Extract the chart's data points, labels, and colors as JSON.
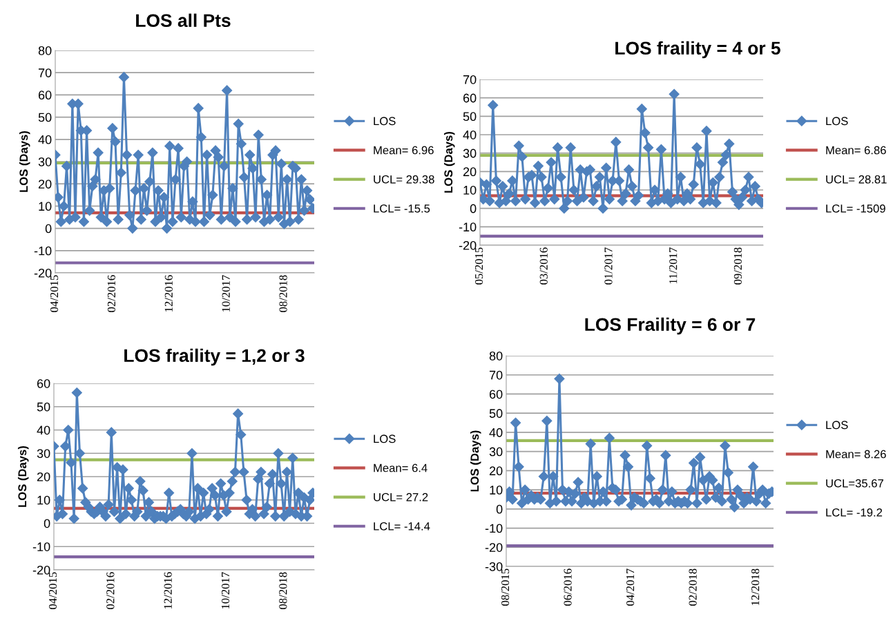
{
  "chart_data": [
    {
      "type": "line",
      "title": "LOS all Pts",
      "ylabel": "LOS (Days)",
      "marker": "diamond",
      "grid": "y",
      "legend": "right",
      "categories": [
        "04/2015",
        null,
        null,
        null,
        null,
        null,
        null,
        null,
        null,
        null,
        null,
        null,
        null,
        null,
        null,
        null,
        null,
        null,
        null,
        null,
        "02/2016",
        null,
        null,
        null,
        null,
        null,
        null,
        null,
        null,
        null,
        null,
        null,
        null,
        null,
        null,
        null,
        null,
        null,
        null,
        null,
        "12/2016",
        null,
        null,
        null,
        null,
        null,
        null,
        null,
        null,
        null,
        null,
        null,
        null,
        null,
        null,
        null,
        null,
        null,
        null,
        null,
        "10/2017",
        null,
        null,
        null,
        null,
        null,
        null,
        null,
        null,
        null,
        null,
        null,
        null,
        null,
        null,
        null,
        null,
        null,
        null,
        null,
        "08/2018",
        null,
        null,
        null,
        null,
        null,
        null,
        null,
        null,
        null,
        null
      ],
      "series": [
        {
          "name": "LOS",
          "color": "#4f81bd",
          "values": [
            33,
            14,
            3,
            10,
            28,
            4,
            56,
            5,
            56,
            44,
            3,
            44,
            8,
            19,
            22,
            34,
            5,
            17,
            3,
            18,
            45,
            39,
            4,
            25,
            68,
            33,
            6,
            0,
            17,
            33,
            4,
            18,
            8,
            21,
            34,
            3,
            17,
            5,
            14,
            0,
            37,
            3,
            22,
            36,
            5,
            28,
            30,
            4,
            12,
            3,
            54,
            41,
            3,
            33,
            6,
            15,
            35,
            32,
            4,
            28,
            62,
            5,
            18,
            3,
            47,
            38,
            23,
            4,
            33,
            27,
            5,
            42,
            22,
            3,
            15,
            4,
            33,
            35,
            5,
            29,
            2,
            22,
            3,
            28,
            27,
            4,
            22,
            8,
            17,
            13,
            9
          ]
        }
      ],
      "ref_lines": [
        {
          "axis": "y",
          "value": 6.96,
          "label": "Mean= 6.96",
          "color": "#c0504d"
        },
        {
          "axis": "y",
          "value": 29.38,
          "label": "UCL= 29.38",
          "color": "#9bbb59"
        },
        {
          "axis": "y",
          "value": -15.5,
          "label": "LCL= -15.5",
          "color": "#8064a2"
        }
      ],
      "ylim": [
        -20,
        80
      ],
      "yticks": [
        -20,
        -10,
        0,
        10,
        20,
        30,
        40,
        50,
        60,
        70,
        80
      ]
    },
    {
      "type": "line",
      "title": "LOS fraility = 4 or 5",
      "ylabel": "LOS (Days)",
      "marker": "diamond",
      "grid": "y",
      "legend": "right",
      "categories": [
        "05/2015",
        null,
        null,
        null,
        null,
        null,
        null,
        null,
        null,
        null,
        null,
        null,
        null,
        null,
        null,
        null,
        null,
        null,
        null,
        null,
        "03/2016",
        null,
        null,
        null,
        null,
        null,
        null,
        null,
        null,
        null,
        null,
        null,
        null,
        null,
        null,
        null,
        null,
        null,
        null,
        null,
        "01/2017",
        null,
        null,
        null,
        null,
        null,
        null,
        null,
        null,
        null,
        null,
        null,
        null,
        null,
        null,
        null,
        null,
        null,
        null,
        null,
        "11/2017",
        null,
        null,
        null,
        null,
        null,
        null,
        null,
        null,
        null,
        null,
        null,
        null,
        null,
        null,
        null,
        null,
        null,
        null,
        null,
        "09/2018",
        null,
        null,
        null,
        null,
        null,
        null,
        null
      ],
      "series": [
        {
          "name": "LOS",
          "color": "#4f81bd",
          "values": [
            14,
            5,
            13,
            4,
            56,
            15,
            3,
            12,
            4,
            8,
            15,
            4,
            34,
            28,
            5,
            17,
            18,
            3,
            23,
            17,
            4,
            11,
            25,
            5,
            33,
            17,
            0,
            4,
            33,
            10,
            4,
            21,
            6,
            20,
            21,
            4,
            12,
            17,
            0,
            22,
            5,
            15,
            36,
            15,
            4,
            8,
            21,
            12,
            4,
            7,
            54,
            41,
            33,
            3,
            10,
            4,
            32,
            5,
            8,
            3,
            62,
            5,
            17,
            4,
            8,
            5,
            13,
            33,
            24,
            3,
            42,
            4,
            14,
            3,
            17,
            25,
            29,
            35,
            9,
            5,
            2,
            6,
            10,
            17,
            4,
            12,
            5,
            3
          ]
        }
      ],
      "ref_lines": [
        {
          "axis": "y",
          "value": 6.86,
          "label": "Mean= 6.86",
          "color": "#c0504d"
        },
        {
          "axis": "y",
          "value": 28.81,
          "label": "UCL= 28.81",
          "color": "#9bbb59"
        },
        {
          "axis": "y",
          "value": -15.09,
          "label": "LCL= -1509",
          "color": "#8064a2"
        }
      ],
      "ylim": [
        -20,
        70
      ],
      "yticks": [
        -20,
        -10,
        0,
        10,
        20,
        30,
        40,
        50,
        60,
        70
      ]
    },
    {
      "type": "line",
      "title": "LOS fraility = 1,2 or 3",
      "ylabel": "LOS (Days)",
      "marker": "diamond",
      "grid": "y",
      "legend": "right",
      "categories": [
        "04/2015",
        null,
        null,
        null,
        null,
        null,
        null,
        null,
        null,
        null,
        null,
        null,
        null,
        null,
        null,
        null,
        null,
        null,
        null,
        null,
        "02/2016",
        null,
        null,
        null,
        null,
        null,
        null,
        null,
        null,
        null,
        null,
        null,
        null,
        null,
        null,
        null,
        null,
        null,
        null,
        null,
        "12/2016",
        null,
        null,
        null,
        null,
        null,
        null,
        null,
        null,
        null,
        null,
        null,
        null,
        null,
        null,
        null,
        null,
        null,
        null,
        null,
        "10/2017",
        null,
        null,
        null,
        null,
        null,
        null,
        null,
        null,
        null,
        null,
        null,
        null,
        null,
        null,
        null,
        null,
        null,
        null,
        null,
        "08/2018",
        null,
        null,
        null,
        null,
        null,
        null,
        null,
        null,
        null,
        null
      ],
      "series": [
        {
          "name": "LOS",
          "color": "#4f81bd",
          "values": [
            33,
            3,
            10,
            4,
            33,
            40,
            26,
            2,
            56,
            30,
            15,
            9,
            7,
            5,
            4,
            5,
            7,
            5,
            3,
            8,
            39,
            5,
            24,
            2,
            23,
            4,
            15,
            10,
            3,
            5,
            18,
            14,
            3,
            9,
            5,
            2,
            3,
            3,
            3,
            2,
            13,
            3,
            4,
            5,
            6,
            4,
            3,
            5,
            30,
            2,
            15,
            3,
            13,
            4,
            6,
            15,
            12,
            3,
            17,
            12,
            5,
            13,
            18,
            22,
            47,
            38,
            22,
            10,
            4,
            6,
            3,
            19,
            22,
            4,
            7,
            17,
            21,
            3,
            30,
            17,
            3,
            22,
            5,
            28,
            4,
            13,
            3,
            11,
            3,
            10,
            13
          ]
        }
      ],
      "ref_lines": [
        {
          "axis": "y",
          "value": 6.4,
          "label": "Mean= 6.4",
          "color": "#c0504d"
        },
        {
          "axis": "y",
          "value": 27.2,
          "label": "UCL= 27.2",
          "color": "#9bbb59"
        },
        {
          "axis": "y",
          "value": -14.4,
          "label": "LCL= -14.4",
          "color": "#8064a2"
        }
      ],
      "ylim": [
        -20,
        60
      ],
      "yticks": [
        -20,
        -10,
        0,
        10,
        20,
        30,
        40,
        50,
        60
      ]
    },
    {
      "type": "line",
      "title": "LOS Fraility = 6 or 7",
      "ylabel": "LOS (Days)",
      "marker": "diamond",
      "grid": "y",
      "legend": "right",
      "categories": [
        "08/2015",
        null,
        null,
        null,
        null,
        null,
        null,
        null,
        null,
        null,
        null,
        null,
        null,
        null,
        null,
        null,
        null,
        null,
        null,
        null,
        "06/2016",
        null,
        null,
        null,
        null,
        null,
        null,
        null,
        null,
        null,
        null,
        null,
        null,
        null,
        null,
        null,
        null,
        null,
        null,
        null,
        "04/2017",
        null,
        null,
        null,
        null,
        null,
        null,
        null,
        null,
        null,
        null,
        null,
        null,
        null,
        null,
        null,
        null,
        null,
        null,
        null,
        "02/2018",
        null,
        null,
        null,
        null,
        null,
        null,
        null,
        null,
        null,
        null,
        null,
        null,
        null,
        null,
        null,
        null,
        null,
        null,
        null,
        "12/2018",
        null,
        null,
        null,
        null,
        null
      ],
      "series": [
        {
          "name": "LOS",
          "color": "#4f81bd",
          "values": [
            6,
            9,
            5,
            45,
            22,
            3,
            10,
            5,
            7,
            5,
            6,
            5,
            17,
            46,
            3,
            17,
            4,
            68,
            10,
            4,
            9,
            4,
            8,
            14,
            3,
            6,
            4,
            34,
            3,
            17,
            4,
            9,
            4,
            37,
            11,
            10,
            4,
            5,
            28,
            22,
            2,
            6,
            5,
            4,
            3,
            33,
            16,
            4,
            5,
            3,
            10,
            28,
            4,
            9,
            3,
            4,
            3,
            4,
            3,
            10,
            24,
            3,
            27,
            15,
            5,
            17,
            15,
            6,
            11,
            4,
            33,
            19,
            5,
            1,
            10,
            7,
            3,
            6,
            5,
            22,
            4,
            8,
            10,
            3,
            8,
            9
          ]
        }
      ],
      "ref_lines": [
        {
          "axis": "y",
          "value": 8.26,
          "label": "Mean= 8.26",
          "color": "#c0504d"
        },
        {
          "axis": "y",
          "value": 35.67,
          "label": "UCL=35.67",
          "color": "#9bbb59"
        },
        {
          "axis": "y",
          "value": -19.2,
          "label": "LCL= -19.2",
          "color": "#8064a2"
        }
      ],
      "ylim": [
        -30,
        80
      ],
      "yticks": [
        -30,
        -20,
        -10,
        0,
        10,
        20,
        30,
        40,
        50,
        60,
        70,
        80
      ]
    }
  ]
}
